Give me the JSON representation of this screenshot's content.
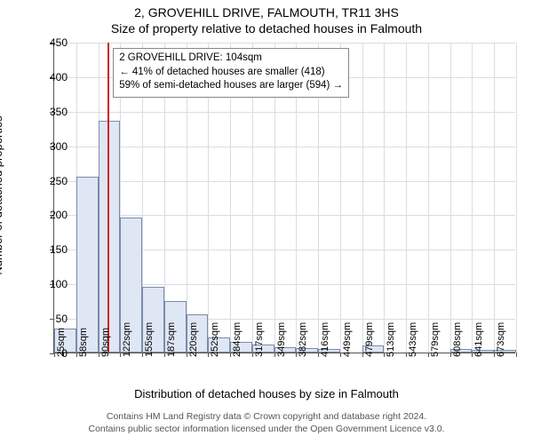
{
  "title": "2, GROVEHILL DRIVE, FALMOUTH, TR11 3HS",
  "subtitle": "Size of property relative to detached houses in Falmouth",
  "ylabel": "Number of detached properties",
  "xlabel": "Distribution of detached houses by size in Falmouth",
  "footnote_l1": "Contains HM Land Registry data © Crown copyright and database right 2024.",
  "footnote_l2": "Contains public sector information licensed under the Open Government Licence v3.0.",
  "annotation": {
    "line1": "2 GROVEHILL DRIVE: 104sqm",
    "line2": "← 41% of detached houses are smaller (418)",
    "line3": "59% of semi-detached houses are larger (594) →"
  },
  "chart": {
    "type": "histogram",
    "background_color": "#ffffff",
    "grid_color": "#d9dde3",
    "axis_color": "#555555",
    "bar_fill": "#dfe6f4",
    "bar_border": "#7b8aa8",
    "ref_line_color": "#d02020",
    "ref_value_sqm": 104,
    "ylim": [
      0,
      450
    ],
    "ytick_step": 50,
    "x_bin_start": 25,
    "x_bin_width": 32.5,
    "x_labels": [
      "25sqm",
      "58sqm",
      "90sqm",
      "122sqm",
      "155sqm",
      "187sqm",
      "220sqm",
      "252sqm",
      "284sqm",
      "317sqm",
      "349sqm",
      "382sqm",
      "416sqm",
      "449sqm",
      "479sqm",
      "513sqm",
      "543sqm",
      "579sqm",
      "608sqm",
      "641sqm",
      "673sqm"
    ],
    "values": [
      35,
      255,
      335,
      195,
      95,
      75,
      55,
      22,
      15,
      12,
      8,
      6,
      5,
      0,
      10,
      0,
      0,
      0,
      5,
      4,
      4
    ],
    "title_fontsize": 14,
    "label_fontsize": 13,
    "tick_fontsize": 12,
    "xtick_fontsize": 11,
    "annot_fontsize": 11.5
  }
}
